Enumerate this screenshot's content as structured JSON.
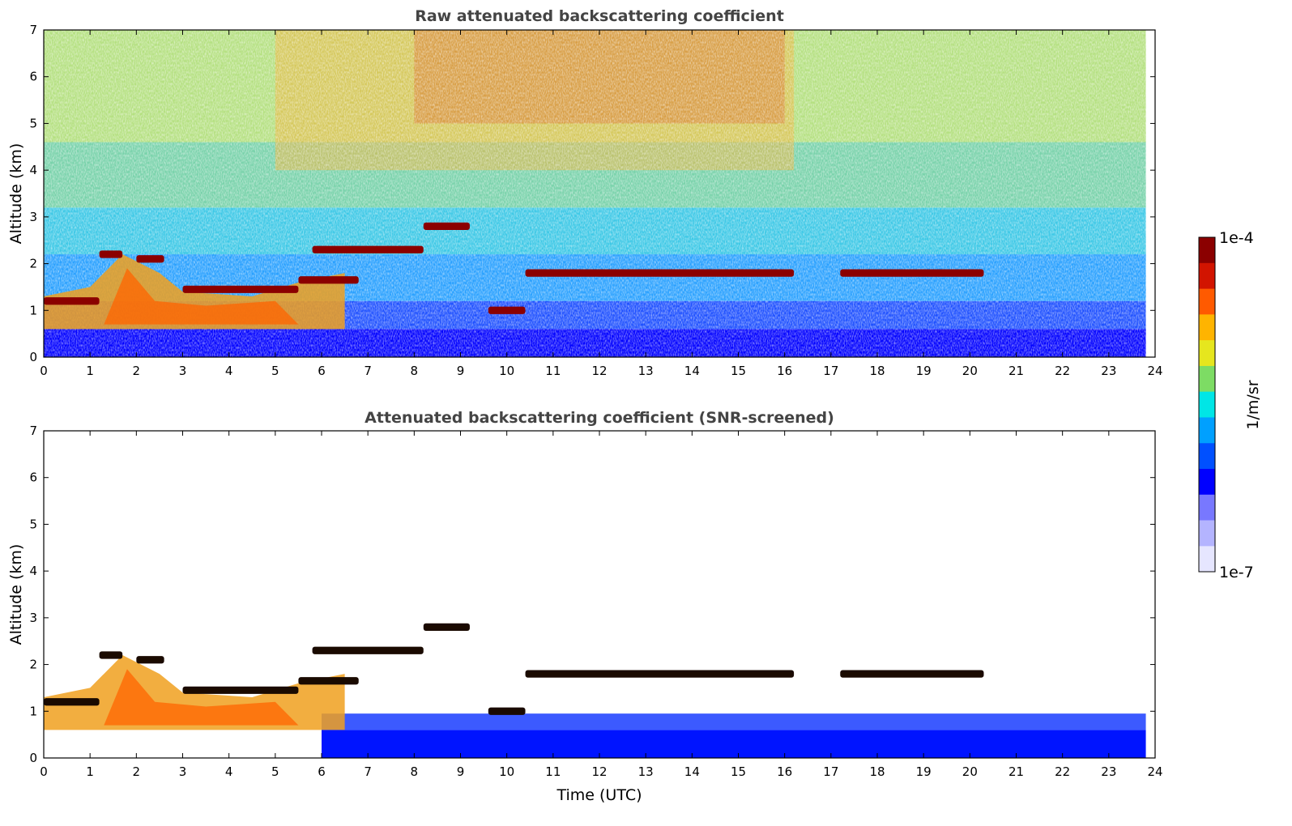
{
  "chart_data": [
    {
      "type": "heatmap",
      "title": "Raw attenuated backscattering coefficient",
      "xlabel": "",
      "ylabel": "Altitude (km)",
      "xlim": [
        0,
        24
      ],
      "ylim": [
        0,
        7
      ],
      "xticks": [
        "0",
        "1",
        "2",
        "3",
        "4",
        "5",
        "6",
        "7",
        "8",
        "9",
        "10",
        "11",
        "12",
        "13",
        "14",
        "15",
        "16",
        "17",
        "18",
        "19",
        "20",
        "21",
        "22",
        "23",
        "24"
      ],
      "yticks": [
        "0",
        "1",
        "2",
        "3",
        "4",
        "5",
        "6",
        "7"
      ],
      "data_end_hour": 23.8,
      "screened": false,
      "features": {
        "cloud_layers": [
          {
            "t0": 0.0,
            "t1": 1.2,
            "alt": 1.2
          },
          {
            "t0": 1.2,
            "t1": 1.7,
            "alt": 2.2
          },
          {
            "t0": 2.0,
            "t1": 2.6,
            "alt": 2.1
          },
          {
            "t0": 3.0,
            "t1": 5.5,
            "alt": 1.45
          },
          {
            "t0": 5.5,
            "t1": 6.8,
            "alt": 1.65
          },
          {
            "t0": 5.8,
            "t1": 8.2,
            "alt": 2.3
          },
          {
            "t0": 8.2,
            "t1": 9.2,
            "alt": 2.8
          },
          {
            "t0": 9.6,
            "t1": 10.4,
            "alt": 1.0
          },
          {
            "t0": 10.4,
            "t1": 16.2,
            "alt": 1.8
          },
          {
            "t0": 17.2,
            "t1": 20.3,
            "alt": 1.8
          }
        ],
        "aerosol_boundary_layer": {
          "t0": 0.0,
          "t1": 6.5,
          "top_alt": 2.2
        }
      }
    },
    {
      "type": "heatmap",
      "title": "Attenuated backscattering coefficient (SNR-screened)",
      "xlabel": "Time (UTC)",
      "ylabel": "Altitude (km)",
      "xlim": [
        0,
        24
      ],
      "ylim": [
        0,
        7
      ],
      "xticks": [
        "0",
        "1",
        "2",
        "3",
        "4",
        "5",
        "6",
        "7",
        "8",
        "9",
        "10",
        "11",
        "12",
        "13",
        "14",
        "15",
        "16",
        "17",
        "18",
        "19",
        "20",
        "21",
        "22",
        "23",
        "24"
      ],
      "yticks": [
        "0",
        "1",
        "2",
        "3",
        "4",
        "5",
        "6",
        "7"
      ],
      "data_end_hour": 23.8,
      "screened": true
    }
  ],
  "colorbar": {
    "label": "1/m/sr",
    "max_label": "1e-4",
    "min_label": "1e-7",
    "colors": [
      "#e6e6ff",
      "#b4b4ff",
      "#7878ff",
      "#0000ff",
      "#0050ff",
      "#00a0ff",
      "#00e6e6",
      "#7ddc64",
      "#e6e61e",
      "#ffb400",
      "#ff5a00",
      "#d21400",
      "#8b0000"
    ]
  }
}
